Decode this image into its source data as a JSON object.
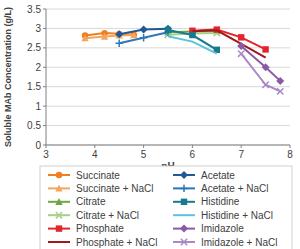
{
  "chart_data": {
    "type": "line",
    "x_label": "pH",
    "y_label": "Soluble MAb Concentration (g/L)",
    "xlim": [
      3,
      8
    ],
    "xticks": [
      3,
      4,
      5,
      6,
      7,
      8
    ],
    "ylim": [
      0,
      3.5
    ],
    "yticks": [
      0,
      0.5,
      1,
      1.5,
      2,
      2.5,
      3,
      3.5
    ],
    "grid": true,
    "legend": "bottom",
    "series": [
      {
        "name": "Succinate",
        "color": "#f07f21",
        "marker": "circle",
        "x": [
          3.8,
          4.2,
          4.5,
          4.8
        ],
        "values": [
          2.82,
          2.88,
          2.86,
          2.84
        ]
      },
      {
        "name": "Succinate + NaCl",
        "color": "#f5a55c",
        "marker": "triangle",
        "x": [
          3.8,
          4.2,
          4.5,
          4.8
        ],
        "values": [
          2.75,
          2.79,
          2.82,
          2.83
        ]
      },
      {
        "name": "Citrate",
        "color": "#6aa842",
        "marker": "triangle",
        "x": [
          5.5,
          6.0,
          6.5
        ],
        "values": [
          2.9,
          2.92,
          2.93
        ]
      },
      {
        "name": "Citrate + NaCl",
        "color": "#a7cf8a",
        "marker": "x",
        "x": [
          5.5,
          6.0,
          6.5
        ],
        "values": [
          2.84,
          2.87,
          2.88
        ]
      },
      {
        "name": "Phosphate",
        "color": "#e2262c",
        "marker": "square",
        "x": [
          6.0,
          6.5,
          7.0,
          7.5
        ],
        "values": [
          2.94,
          2.97,
          2.77,
          2.46
        ]
      },
      {
        "name": "Phosphate + NaCl",
        "color": "#a3181d",
        "marker": "none",
        "x": [
          6.0,
          6.5,
          7.0,
          7.5
        ],
        "values": [
          2.93,
          2.95,
          2.6,
          2.25
        ]
      },
      {
        "name": "Acetate",
        "color": "#1f5996",
        "marker": "diamond",
        "x": [
          4.5,
          5.0,
          5.5
        ],
        "values": [
          2.85,
          2.97,
          2.99
        ]
      },
      {
        "name": "Acetate + NaCl",
        "color": "#2e78b8",
        "marker": "cross",
        "x": [
          4.5,
          5.0,
          5.5
        ],
        "values": [
          2.62,
          2.76,
          2.9
        ]
      },
      {
        "name": "Histidine",
        "color": "#187a8e",
        "marker": "square",
        "x": [
          5.5,
          6.0,
          6.5
        ],
        "values": [
          2.96,
          2.83,
          2.45
        ]
      },
      {
        "name": "Histidine + NaCl",
        "color": "#5cc2dc",
        "marker": "none",
        "x": [
          5.5,
          6.0,
          6.5
        ],
        "values": [
          2.8,
          2.66,
          2.35
        ]
      },
      {
        "name": "Imidazole",
        "color": "#8b5aa6",
        "marker": "diamond",
        "x": [
          7.0,
          7.5,
          7.8
        ],
        "values": [
          2.55,
          2.0,
          1.65
        ]
      },
      {
        "name": "Imidazole + NaCl",
        "color": "#a989c6",
        "marker": "x",
        "x": [
          7.0,
          7.5,
          7.8
        ],
        "values": [
          2.35,
          1.55,
          1.38
        ]
      }
    ]
  }
}
